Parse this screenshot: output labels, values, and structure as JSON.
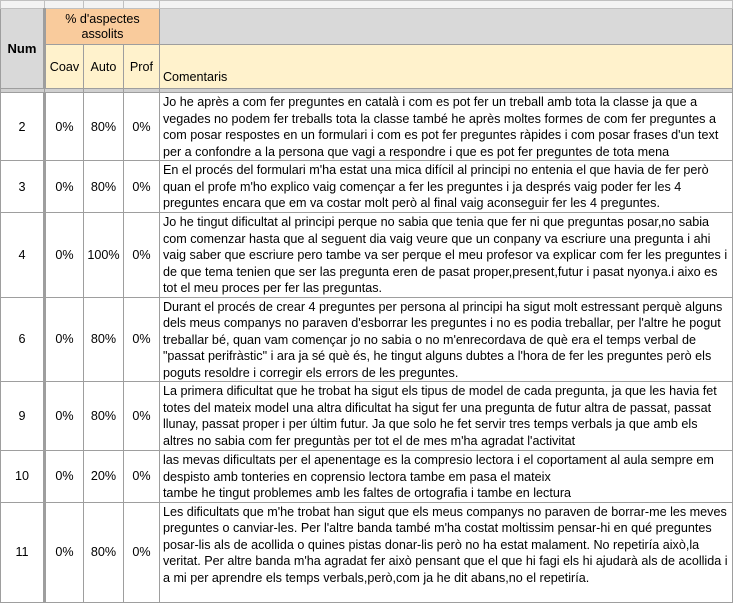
{
  "header": {
    "num": "Num",
    "group": "% d'aspectes assolits",
    "coav": "Coav",
    "auto": "Auto",
    "prof": "Prof",
    "comentaris": "Comentaris"
  },
  "colors": {
    "orange": "#f9cb9c",
    "yellow": "#fff2cc",
    "grey": "#d9d9d9"
  },
  "rows": [
    {
      "num": "2",
      "coav": "0%",
      "auto": "80%",
      "prof": "0%",
      "comment": "Jo he après a com fer preguntes en català i com es pot fer un treball amb tota la classe ja que a vegades no podem fer treballs tota la classe també he après moltes formes de com fer preguntes a com posar respostes en un formulari i com es pot fer preguntes ràpides i com posar frases d'un text per a confondre a la persona que vagi a respondre i que es pot fer preguntes de tota mena"
    },
    {
      "num": "3",
      "coav": "0%",
      "auto": "80%",
      "prof": "0%",
      "comment": "En el procés del formulari m'ha estat una mica difícil al principi no entenia el que havia de fer però quan el profe m'ho explico vaig començar a fer les preguntes i ja després vaig poder fer les 4 preguntes encara que em va costar  molt però al final vaig aconseguir fer les 4 preguntes."
    },
    {
      "num": "4",
      "coav": "0%",
      "auto": "100%",
      "prof": "0%",
      "comment": "Jo he tingut dificultat al principi perque no sabia que tenia que fer ni que preguntas posar,no sabia com comenzar hasta que al seguent dia vaig veure que un conpany va escriure una pregunta i ahi vaig saber que escriure pero tambe va ser perque el meu profesor va explicar com fer les preguntes i de que tema tenien que ser las pregunta eren de pasat proper,present,futur i pasat nyonya.i aixo es tot el meu proces per fer las preguntas."
    },
    {
      "num": "6",
      "coav": "0%",
      "auto": "80%",
      "prof": "0%",
      "comment": "Durant el procés de crear 4 preguntes per persona al principi ha sigut molt estressant perquè alguns dels meus companys no paraven d'esborrar les preguntes i no es podia treballar, per l'altre he pogut treballar bé, quan vam començar jo no sabia o no m'enrecordava de què era el temps verbal de \"passat perifràstic\" i ara ja sé què és, he tingut alguns dubtes a l'hora de fer les preguntes però els poguts resoldre i corregir els errors de les preguntes."
    },
    {
      "num": "9",
      "coav": "0%",
      "auto": "80%",
      "prof": "0%",
      "comment": "La primera dificultat que he trobat ha sigut els tipus de model de cada pregunta, ja que les havia fet totes del mateix model una altra dificultat ha sigut fer una pregunta de futur altra de passat, passat llunay, passat proper i per últim futur. Ja que solo he fet servir tres temps verbals ja que amb els altres no sabia com fer preguntàs per tot el de mes m'ha agradat l'activitat"
    },
    {
      "num": "10",
      "coav": "0%",
      "auto": "20%",
      "prof": "0%",
      "comment": "las mevas dificultats  per el apenentage es la compresio lectora  i el coportament al aula sempre em despisto amb tonteries  en coprensio lectora tambe em pasa el mateix\ntambe he tingut problemes amb les faltes de ortografia i tambe en lectura"
    },
    {
      "num": "11",
      "coav": "0%",
      "auto": "80%",
      "prof": "0%",
      "comment": "Les dificultats que m'he trobat han sigut que els meus companys no paraven de borrar-me les meves preguntes o canviar-les. Per l'altre banda també m'ha costat moltissim pensar-hi en qué preguntes posar-lis als de acollida o quines pistas donar-lis però no ha estat malament. No repetiría això,la veritat. Per altre banda m'ha agradat fer això pensant que el que hi fagi els hi ajudarà als de acollida i a mi per aprendre els temps verbals,però,com ja he dit abans,no el repetiría."
    }
  ]
}
